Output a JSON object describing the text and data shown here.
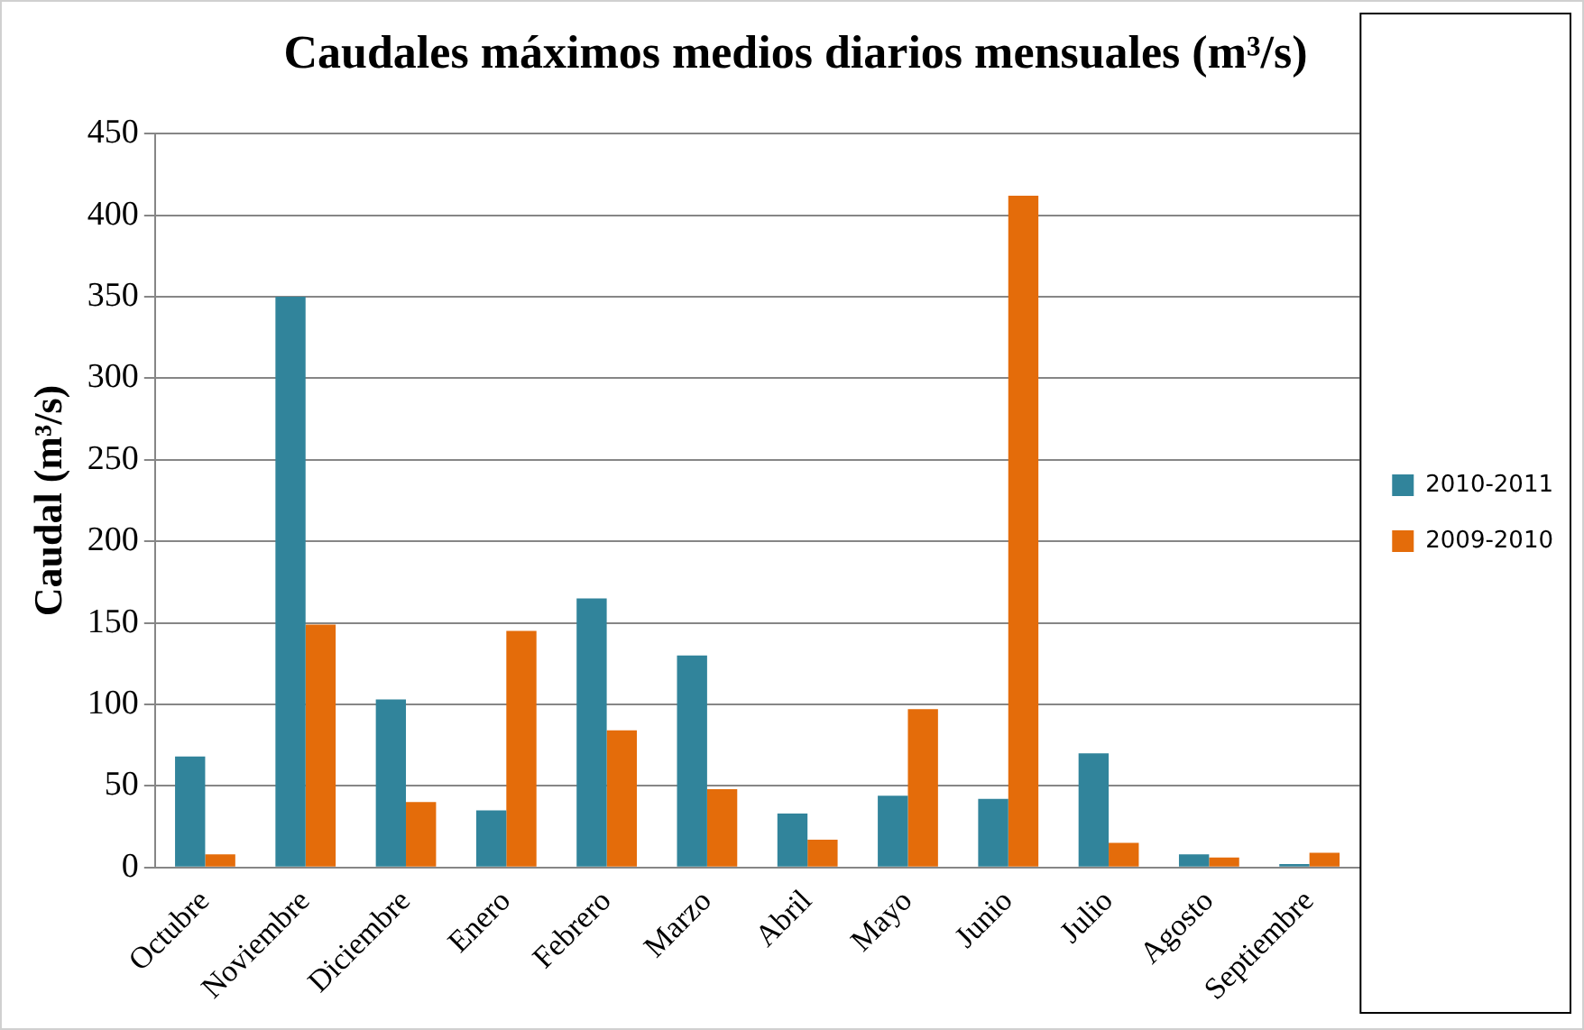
{
  "chart_data": {
    "type": "bar",
    "title": "Caudales máximos medios diarios mensuales (m³/s)",
    "ylabel": "Caudal (m³/s)",
    "categories": [
      "Octubre",
      "Noviembre",
      "Diciembre",
      "Enero",
      "Febrero",
      "Marzo",
      "Abril",
      "Mayo",
      "Junio",
      "Julio",
      "Agosto",
      "Septiembre"
    ],
    "series": [
      {
        "name": "2010-2011",
        "color": "#31849b",
        "values": [
          68,
          350,
          103,
          35,
          165,
          130,
          33,
          44,
          42,
          70,
          8,
          2
        ]
      },
      {
        "name": "2009-2010",
        "color": "#e46c0a",
        "values": [
          8,
          149,
          40,
          145,
          84,
          48,
          17,
          97,
          412,
          15,
          6,
          9
        ]
      }
    ],
    "ylim": [
      0,
      450
    ],
    "yticks": [
      0,
      50,
      100,
      150,
      200,
      250,
      300,
      350,
      400,
      450
    ],
    "grid": "y",
    "legend": "right"
  }
}
